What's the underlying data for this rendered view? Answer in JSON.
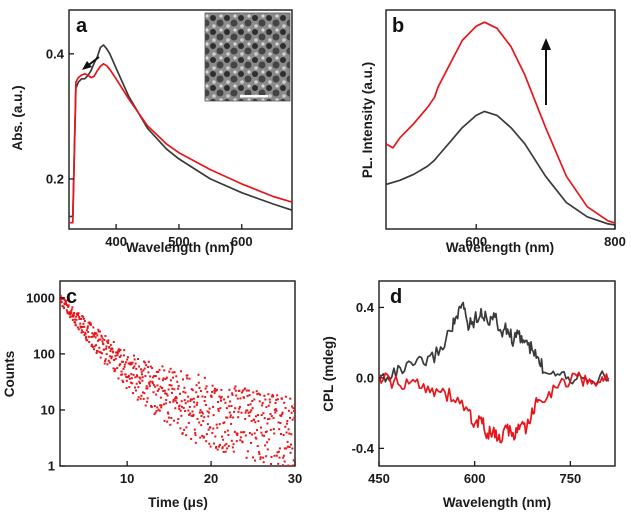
{
  "colors": {
    "black": "#3a3a3a",
    "red": "#e8151b",
    "axis": "#1a1a1a"
  },
  "chart_data": [
    {
      "panel": "a",
      "type": "line",
      "xlabel": "Wavelength (nm)",
      "ylabel": "Abs. (a.u.)",
      "xlim": [
        325,
        680
      ],
      "ylim": [
        0.12,
        0.47
      ],
      "xticks": [
        400,
        500,
        600
      ],
      "yticks": [
        0.2,
        0.4
      ],
      "ytick_labels": [
        "0.2",
        "0.4"
      ],
      "inset": "TEM image",
      "annotation": "arrow pointing to shoulder near 365 nm",
      "series": [
        {
          "color": "black",
          "x": [
            325,
            331,
            336,
            340,
            345,
            350,
            355,
            360,
            365,
            370,
            375,
            380,
            385,
            390,
            400,
            420,
            450,
            480,
            500,
            550,
            600,
            650,
            680
          ],
          "y": [
            0.14,
            0.14,
            0.345,
            0.355,
            0.36,
            0.36,
            0.365,
            0.373,
            0.385,
            0.395,
            0.41,
            0.414,
            0.408,
            0.4,
            0.377,
            0.332,
            0.281,
            0.248,
            0.232,
            0.2,
            0.178,
            0.16,
            0.15
          ]
        },
        {
          "color": "red",
          "x": [
            325,
            331,
            336,
            340,
            345,
            350,
            355,
            360,
            365,
            370,
            375,
            380,
            385,
            390,
            400,
            420,
            450,
            480,
            500,
            550,
            600,
            650,
            680
          ],
          "y": [
            0.13,
            0.13,
            0.355,
            0.362,
            0.366,
            0.368,
            0.366,
            0.362,
            0.364,
            0.373,
            0.38,
            0.384,
            0.381,
            0.375,
            0.36,
            0.328,
            0.285,
            0.256,
            0.242,
            0.215,
            0.192,
            0.172,
            0.163
          ]
        }
      ]
    },
    {
      "panel": "b",
      "type": "line",
      "xlabel": "Wavelength (nm)",
      "ylabel": "PL. Intensity (a.u.)",
      "xlim": [
        470,
        800
      ],
      "ylim": [
        0,
        1.08
      ],
      "xticks": [
        600,
        800
      ],
      "yticks": [],
      "annotation": "upward arrow",
      "series": [
        {
          "color": "black",
          "x": [
            470,
            490,
            510,
            530,
            540,
            545,
            560,
            580,
            600,
            612,
            630,
            650,
            670,
            700,
            730,
            760,
            790,
            800
          ],
          "y": [
            0.22,
            0.24,
            0.27,
            0.31,
            0.34,
            0.36,
            0.42,
            0.5,
            0.56,
            0.58,
            0.56,
            0.5,
            0.42,
            0.26,
            0.13,
            0.06,
            0.025,
            0.02
          ]
        },
        {
          "color": "red",
          "x": [
            470,
            480,
            490,
            510,
            530,
            540,
            545,
            560,
            580,
            600,
            612,
            630,
            650,
            670,
            700,
            730,
            760,
            790,
            800
          ],
          "y": [
            0.42,
            0.4,
            0.45,
            0.52,
            0.6,
            0.65,
            0.7,
            0.8,
            0.93,
            1.0,
            1.02,
            0.99,
            0.9,
            0.76,
            0.5,
            0.26,
            0.11,
            0.04,
            0.03
          ]
        }
      ]
    },
    {
      "panel": "c",
      "type": "scatter",
      "xlabel": "Time (μs)",
      "ylabel": "Counts",
      "xlim": [
        2,
        30
      ],
      "ylim": [
        1,
        2000
      ],
      "yscale": "log",
      "xticks": [
        10,
        20,
        30
      ],
      "yticks": [
        1,
        10,
        100,
        1000
      ],
      "ytick_labels": [
        "1",
        "10",
        "100",
        "1000"
      ],
      "series": [
        {
          "color": "red",
          "decay": {
            "a1": 900,
            "t1": 2.3,
            "a2": 60,
            "t2": 8.0,
            "offset": 2.0,
            "x0": 2,
            "n_points": 700
          }
        }
      ]
    },
    {
      "panel": "d",
      "type": "line",
      "xlabel": "Wavelength (nm)",
      "ylabel": "CPL (mdeg)",
      "xlim": [
        450,
        820
      ],
      "ylim": [
        -0.5,
        0.55
      ],
      "xticks": [
        450,
        600,
        750
      ],
      "yticks": [
        -0.4,
        0.0,
        0.4
      ],
      "ytick_labels": [
        "-0.4",
        "0.0",
        "0.4"
      ],
      "series": [
        {
          "color": "black",
          "x": [
            450,
            470,
            490,
            510,
            530,
            550,
            565,
            575,
            582,
            590,
            600,
            610,
            620,
            630,
            640,
            650,
            660,
            670,
            680,
            690,
            700,
            710,
            730,
            750,
            770,
            790,
            810
          ],
          "y": [
            0.0,
            0.02,
            0.05,
            0.08,
            0.1,
            0.18,
            0.3,
            0.36,
            0.42,
            0.3,
            0.33,
            0.38,
            0.32,
            0.36,
            0.26,
            0.28,
            0.22,
            0.24,
            0.2,
            0.16,
            0.1,
            0.04,
            0.05,
            0.0,
            0.02,
            0.0,
            0.0
          ]
        },
        {
          "color": "red",
          "x": [
            450,
            470,
            490,
            510,
            530,
            550,
            570,
            590,
            600,
            610,
            620,
            630,
            640,
            650,
            660,
            670,
            680,
            690,
            700,
            720,
            740,
            760,
            780,
            800,
            810
          ],
          "y": [
            0.0,
            -0.02,
            -0.05,
            -0.02,
            -0.06,
            -0.08,
            -0.12,
            -0.18,
            -0.28,
            -0.24,
            -0.32,
            -0.3,
            -0.36,
            -0.28,
            -0.34,
            -0.26,
            -0.3,
            -0.2,
            -0.12,
            -0.08,
            -0.02,
            0.0,
            -0.03,
            0.0,
            -0.02
          ]
        }
      ]
    }
  ]
}
